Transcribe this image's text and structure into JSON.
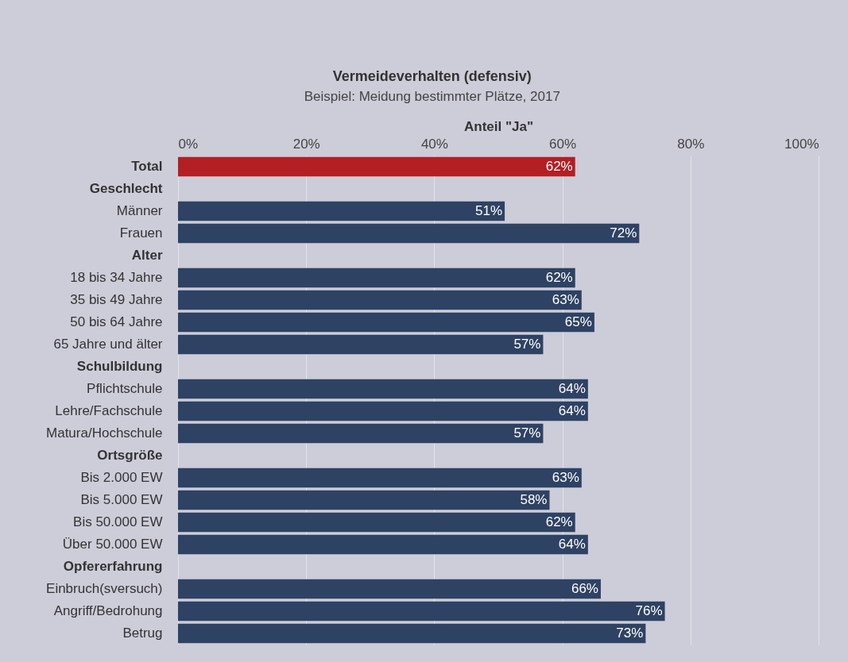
{
  "chart_data": {
    "type": "bar",
    "orientation": "horizontal",
    "title": "Vermeideverhalten (defensiv)",
    "subtitle": "Beispiel: Meidung bestimmter Plätze, 2017",
    "xlabel": "Anteil \"Ja\"",
    "categories": [
      "Total",
      "Geschlecht",
      "Männer",
      "Frauen",
      "Alter",
      "18 bis 34 Jahre",
      "35 bis 49 Jahre",
      "50 bis 64 Jahre",
      "65 Jahre und älter",
      "Schulbildung",
      "Pflichtschule",
      "Lehre/Fachschule",
      "Matura/Hochschule",
      "Ortsgröße",
      "Bis 2.000 EW",
      "Bis 5.000 EW",
      "Bis 50.000 EW",
      "Über 50.000 EW",
      "Opfererfahrung",
      "Einbruch(sversuch)",
      "Angriff/Bedrohung",
      "Betrug"
    ],
    "values": [
      62,
      null,
      51,
      72,
      null,
      62,
      63,
      65,
      57,
      null,
      64,
      64,
      57,
      null,
      63,
      58,
      62,
      64,
      null,
      66,
      76,
      73
    ],
    "value_labels": [
      "62%",
      null,
      "51%",
      "72%",
      null,
      "62%",
      "63%",
      "65%",
      "57%",
      null,
      "64%",
      "64%",
      "57%",
      null,
      "63%",
      "58%",
      "62%",
      "64%",
      null,
      "66%",
      "76%",
      "73%"
    ],
    "colors": [
      "#b41f24",
      null,
      "#2e4263",
      "#2e4263",
      null,
      "#2e4263",
      "#2e4263",
      "#2e4263",
      "#2e4263",
      null,
      "#2e4263",
      "#2e4263",
      "#2e4263",
      null,
      "#2e4263",
      "#2e4263",
      "#2e4263",
      "#2e4263",
      null,
      "#2e4263",
      "#2e4263",
      "#2e4263"
    ],
    "xlim": [
      0,
      100
    ],
    "xticks": [
      {
        "value": 0,
        "label": "0%"
      },
      {
        "value": 20,
        "label": "20%"
      },
      {
        "value": 40,
        "label": "40%"
      },
      {
        "value": 60,
        "label": "60%"
      },
      {
        "value": 80,
        "label": "80%"
      },
      {
        "value": 100,
        "label": "100%"
      }
    ],
    "grid": true
  }
}
